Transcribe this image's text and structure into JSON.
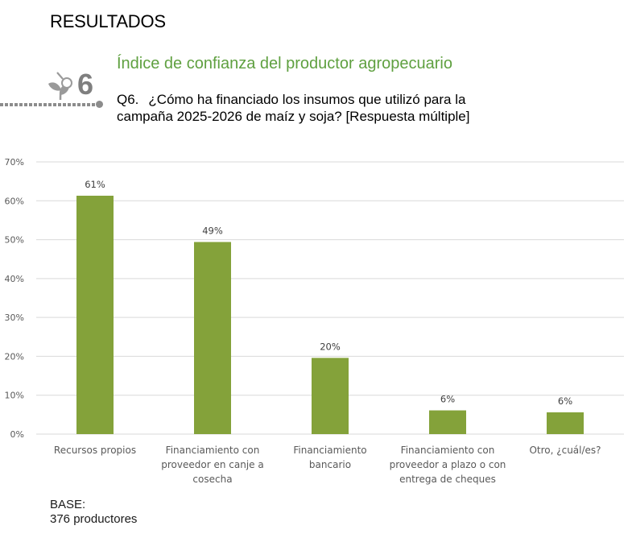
{
  "header": {
    "section": "RESULTADOS",
    "badge_number": "6",
    "badge_icon": "plant-magnifier-icon",
    "subtitle": "Índice de confianza del productor agropecuario",
    "question_number": "Q6.",
    "question_line1": "¿Cómo ha financiado los insumos que utilizó para la",
    "question_line2": "campaña 2025-2026 de maíz y soja? [Respuesta múltiple]"
  },
  "footer": {
    "base_label": "BASE:",
    "base_value": "376 productores"
  },
  "colors": {
    "bar": "#84a23a",
    "subtitle": "#5fa040",
    "grid": "#d9d9d9"
  },
  "chart_data": {
    "type": "bar",
    "title": "",
    "xlabel": "",
    "ylabel": "",
    "ylim": [
      0,
      70
    ],
    "yticks": [
      0,
      10,
      20,
      30,
      40,
      50,
      60,
      70
    ],
    "ytick_labels": [
      "0%",
      "10%",
      "20%",
      "30%",
      "40%",
      "50%",
      "60%",
      "70%"
    ],
    "grid": true,
    "categories": [
      [
        "Recursos propios"
      ],
      [
        "Financiamiento con",
        "proveedor en canje a",
        "cosecha"
      ],
      [
        "Financiamiento",
        "bancario"
      ],
      [
        "Financiamiento con",
        "proveedor a plazo o con",
        "entrega de cheques"
      ],
      [
        "Otro, ¿cuál/es?"
      ]
    ],
    "values": [
      61.3,
      49.4,
      19.6,
      6.1,
      5.6
    ],
    "data_labels": [
      "61%",
      "49%",
      "20%",
      "6%",
      "6%"
    ]
  }
}
